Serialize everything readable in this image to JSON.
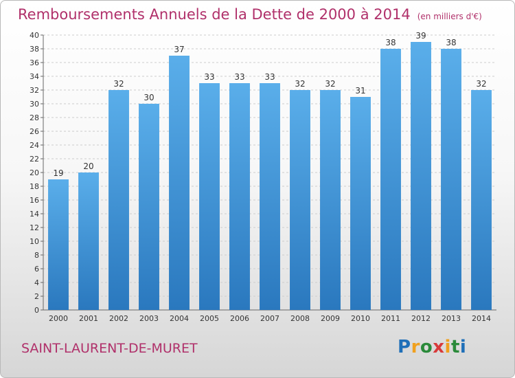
{
  "header": {
    "title": "Remboursements Annuels de la Dette de 2000 à 2014",
    "subtitle": "(en milliers d'€)"
  },
  "footer": {
    "commune": "SAINT-LAURENT-DE-MURET",
    "brand": "Proxiti"
  },
  "colors": {
    "title": "#b0306a",
    "bar_top": "#5aaeea",
    "bar_bottom": "#2a78be",
    "grid": "#cccccc"
  },
  "chart_data": {
    "type": "bar",
    "title": "Remboursements Annuels de la Dette de 2000 à 2014",
    "subtitle": "(en milliers d'€)",
    "xlabel": "",
    "ylabel": "",
    "categories": [
      "2000",
      "2001",
      "2002",
      "2003",
      "2004",
      "2005",
      "2006",
      "2007",
      "2008",
      "2009",
      "2010",
      "2011",
      "2012",
      "2013",
      "2014"
    ],
    "values": [
      19,
      20,
      32,
      30,
      37,
      33,
      33,
      33,
      32,
      32,
      31,
      38,
      39,
      38,
      32
    ],
    "ylim": [
      0,
      40
    ],
    "ytick_step": 2,
    "grid": true,
    "data_labels": true
  }
}
